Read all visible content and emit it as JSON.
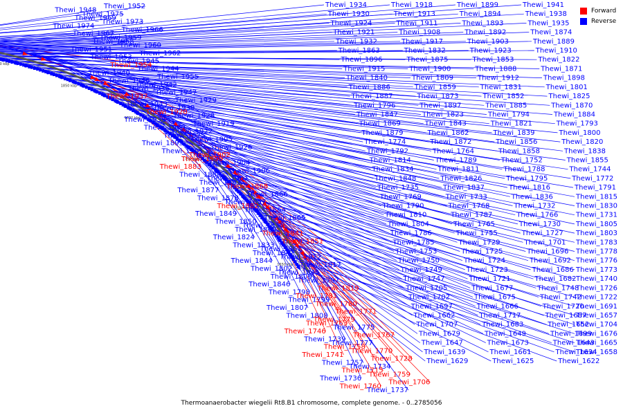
{
  "legend": [
    {
      "label": "Forward",
      "color": "#ff0000"
    },
    {
      "label": "Reverse",
      "color": "#0000ff"
    }
  ],
  "colors": {
    "forward": "#ff0000",
    "reverse": "#0000ff",
    "backbone": "#555555"
  },
  "caption": "Thermoanaerobacter wiegelii Rt8.B1 chromosome, complete genome. - 0..2785056",
  "ticks": [
    "1950 kbp",
    "1900 kbp",
    "1850 kbp",
    "1800 kbp",
    "1750 kbp",
    "1700 kbp",
    "1650 kbp"
  ],
  "left_labels": [
    {
      "text": "Thewi_1952",
      "strand": "reverse"
    },
    {
      "text": "Thewi_1948",
      "strand": "reverse"
    },
    {
      "text": "Thewi_1975",
      "strand": "reverse"
    },
    {
      "text": "Thewi_1969",
      "strand": "reverse"
    },
    {
      "text": "Thewi_1973",
      "strand": "reverse"
    },
    {
      "text": "Thewi_1974",
      "strand": "reverse"
    },
    {
      "text": "Thewi_1966",
      "strand": "reverse"
    },
    {
      "text": "Thewi_1967",
      "strand": "reverse"
    },
    {
      "text": "Thewi_1959",
      "strand": "reverse"
    },
    {
      "text": "Thewi_1968",
      "strand": "reverse"
    },
    {
      "text": "Thewi_1960",
      "strand": "reverse"
    },
    {
      "text": "Thewi_1951",
      "strand": "reverse"
    },
    {
      "text": "Thewi_1962",
      "strand": "reverse"
    },
    {
      "text": "Thewi_1953",
      "strand": "reverse"
    },
    {
      "text": "Thewi_1945",
      "strand": "reverse"
    },
    {
      "text": "Thewi_1954",
      "strand": "forward"
    },
    {
      "text": "Thewi_1944",
      "strand": "reverse"
    },
    {
      "text": "Thewi_1940",
      "strand": "reverse"
    },
    {
      "text": "Thewi_1955",
      "strand": "reverse"
    },
    {
      "text": "Thewi_1946",
      "strand": "reverse"
    },
    {
      "text": "Thewi_1942",
      "strand": "reverse"
    },
    {
      "text": "Thewi_1936",
      "strand": "reverse"
    },
    {
      "text": "Thewi_1947",
      "strand": "reverse"
    },
    {
      "text": "Thewi_1937",
      "strand": "forward"
    },
    {
      "text": "Thewi_1929",
      "strand": "reverse"
    },
    {
      "text": "Thewi_1943",
      "strand": "reverse"
    },
    {
      "text": "Thewi_1939",
      "strand": "reverse"
    },
    {
      "text": "Thewi_1920",
      "strand": "forward"
    },
    {
      "text": "Thewi_1928",
      "strand": "reverse"
    },
    {
      "text": "Thewi_1933",
      "strand": "reverse"
    },
    {
      "text": "Thewi_1919",
      "strand": "reverse"
    },
    {
      "text": "Thewi_1909",
      "strand": "reverse"
    },
    {
      "text": "Thewi_1922",
      "strand": "reverse"
    },
    {
      "text": "Thewi_1925",
      "strand": "reverse"
    },
    {
      "text": "Thewi_1905",
      "strand": "reverse"
    },
    {
      "text": "Thewi_1895",
      "strand": "reverse"
    },
    {
      "text": "Thewi_1926",
      "strand": "reverse"
    },
    {
      "text": "Thewi_1901",
      "strand": "reverse"
    },
    {
      "text": "Thewi_1902",
      "strand": "forward"
    },
    {
      "text": "Thewi_1890",
      "strand": "forward"
    },
    {
      "text": "Thewi_1904",
      "strand": "reverse"
    },
    {
      "text": "Thewi_1883",
      "strand": "forward"
    },
    {
      "text": "Thewi_1906",
      "strand": "reverse"
    },
    {
      "text": "Thewi_1880",
      "strand": "reverse"
    },
    {
      "text": "Thewi_1907",
      "strand": "reverse"
    },
    {
      "text": "Thewi_1881",
      "strand": "reverse"
    },
    {
      "text": "Thewi_1868",
      "strand": "forward"
    },
    {
      "text": "Thewi_1877",
      "strand": "reverse"
    },
    {
      "text": "Thewi_1866",
      "strand": "reverse"
    },
    {
      "text": "Thewi_1878",
      "strand": "reverse"
    },
    {
      "text": "Thewi_1857",
      "strand": "reverse"
    },
    {
      "text": "Thewi_1882",
      "strand": "forward"
    },
    {
      "text": "Thewi_1864",
      "strand": "reverse"
    },
    {
      "text": "Thewi_1849",
      "strand": "reverse"
    },
    {
      "text": "Thewi_1865",
      "strand": "reverse"
    },
    {
      "text": "Thewi_1850",
      "strand": "reverse"
    },
    {
      "text": "Thewi_1835",
      "strand": "reverse"
    },
    {
      "text": "Thewi_1860",
      "strand": "reverse"
    },
    {
      "text": "Thewi_1841",
      "strand": "forward"
    },
    {
      "text": "Thewi_1824",
      "strand": "reverse"
    },
    {
      "text": "Thewi_1851",
      "strand": "forward"
    },
    {
      "text": "Thewi_1833",
      "strand": "reverse"
    },
    {
      "text": "Thewi_1861",
      "strand": "reverse"
    },
    {
      "text": "Thewi_1842",
      "strand": "reverse"
    },
    {
      "text": "Thewi_1812",
      "strand": "reverse"
    },
    {
      "text": "Thewi_1844",
      "strand": "reverse"
    },
    {
      "text": "Thewi_1817",
      "strand": "reverse"
    },
    {
      "text": "Thewi_1802",
      "strand": "reverse"
    },
    {
      "text": "Thewi_1845",
      "strand": "reverse"
    },
    {
      "text": "Thewi_1806",
      "strand": "reverse"
    },
    {
      "text": "Thewi_1797",
      "strand": "reverse"
    },
    {
      "text": "Thewi_1846",
      "strand": "reverse"
    },
    {
      "text": "Thewi_1819",
      "strand": "forward"
    },
    {
      "text": "Thewi_1798",
      "strand": "reverse"
    },
    {
      "text": "Thewi_1781",
      "strand": "forward"
    },
    {
      "text": "Thewi_1799",
      "strand": "reverse"
    },
    {
      "text": "Thewi_1780",
      "strand": "forward"
    },
    {
      "text": "Thewi_1807",
      "strand": "reverse"
    },
    {
      "text": "Thewi_1771",
      "strand": "forward"
    },
    {
      "text": "Thewi_1808",
      "strand": "reverse"
    },
    {
      "text": "Thewi_1779",
      "strand": "forward"
    },
    {
      "text": "Thewi_1763",
      "strand": "forward"
    },
    {
      "text": "Thewi_1775",
      "strand": "reverse"
    },
    {
      "text": "Thewi_1746",
      "strand": "forward"
    },
    {
      "text": "Thewi_1767",
      "strand": "forward"
    },
    {
      "text": "Thewi_1739",
      "strand": "reverse"
    },
    {
      "text": "Thewi_1777",
      "strand": "reverse"
    },
    {
      "text": "Thewi_1758",
      "strand": "forward"
    },
    {
      "text": "Thewi_1770",
      "strand": "forward"
    },
    {
      "text": "Thewi_1741",
      "strand": "forward"
    },
    {
      "text": "Thewi_1728",
      "strand": "forward"
    },
    {
      "text": "Thewi_1757",
      "strand": "reverse"
    },
    {
      "text": "Thewi_1734",
      "strand": "reverse"
    },
    {
      "text": "Thewi_1715",
      "strand": "forward"
    },
    {
      "text": "Thewi_1759",
      "strand": "forward"
    },
    {
      "text": "Thewi_1736",
      "strand": "reverse"
    },
    {
      "text": "Thewi_1706",
      "strand": "forward"
    },
    {
      "text": "Thewi_1760",
      "strand": "forward"
    },
    {
      "text": "Thewi_1737",
      "strand": "reverse"
    }
  ],
  "right_labels": [
    {
      "text": "Thewi_1934",
      "strand": "reverse"
    },
    {
      "text": "Thewi_1918",
      "strand": "reverse"
    },
    {
      "text": "Thewi_1899",
      "strand": "reverse"
    },
    {
      "text": "Thewi_1941",
      "strand": "reverse"
    },
    {
      "text": "Thewi_1930",
      "strand": "reverse"
    },
    {
      "text": "Thewi_1913",
      "strand": "reverse"
    },
    {
      "text": "Thewi_1894",
      "strand": "reverse"
    },
    {
      "text": "Thewi_1938",
      "strand": "reverse"
    },
    {
      "text": "Thewi_1924",
      "strand": "reverse"
    },
    {
      "text": "Thewi_1911",
      "strand": "reverse"
    },
    {
      "text": "Thewi_1893",
      "strand": "reverse"
    },
    {
      "text": "Thewi_1935",
      "strand": "reverse"
    },
    {
      "text": "Thewi_1921",
      "strand": "reverse"
    },
    {
      "text": "Thewi_1908",
      "strand": "reverse"
    },
    {
      "text": "Thewi_1892",
      "strand": "reverse"
    },
    {
      "text": "Thewi_1874",
      "strand": "reverse"
    },
    {
      "text": "Thewi_1932",
      "strand": "reverse"
    },
    {
      "text": "Thewi_1917",
      "strand": "reverse"
    },
    {
      "text": "Thewi_1903",
      "strand": "reverse"
    },
    {
      "text": "Thewi_1889",
      "strand": "reverse"
    },
    {
      "text": "Thewi_1863",
      "strand": "reverse"
    },
    {
      "text": "Thewi_1832",
      "strand": "reverse"
    },
    {
      "text": "Thewi_1923",
      "strand": "reverse"
    },
    {
      "text": "Thewi_1910",
      "strand": "reverse"
    },
    {
      "text": "Thewi_1896",
      "strand": "reverse"
    },
    {
      "text": "Thewi_1875",
      "strand": "reverse"
    },
    {
      "text": "Thewi_1853",
      "strand": "reverse"
    },
    {
      "text": "Thewi_1822",
      "strand": "reverse"
    },
    {
      "text": "Thewi_1915",
      "strand": "reverse"
    },
    {
      "text": "Thewi_1900",
      "strand": "reverse"
    },
    {
      "text": "Thewi_1888",
      "strand": "reverse"
    },
    {
      "text": "Thewi_1871",
      "strand": "reverse"
    },
    {
      "text": "Thewi_1840",
      "strand": "reverse"
    },
    {
      "text": "Thewi_1809",
      "strand": "reverse"
    },
    {
      "text": "Thewi_1912",
      "strand": "reverse"
    },
    {
      "text": "Thewi_1898",
      "strand": "reverse"
    },
    {
      "text": "Thewi_1886",
      "strand": "reverse"
    },
    {
      "text": "Thewi_1859",
      "strand": "reverse"
    },
    {
      "text": "Thewi_1831",
      "strand": "reverse"
    },
    {
      "text": "Thewi_1801",
      "strand": "reverse"
    },
    {
      "text": "Thewi_1887",
      "strand": "reverse"
    },
    {
      "text": "Thewi_1873",
      "strand": "reverse"
    },
    {
      "text": "Thewi_1852",
      "strand": "reverse"
    },
    {
      "text": "Thewi_1825",
      "strand": "reverse"
    },
    {
      "text": "Thewi_1796",
      "strand": "reverse"
    },
    {
      "text": "Thewi_1897",
      "strand": "reverse"
    },
    {
      "text": "Thewi_1885",
      "strand": "reverse"
    },
    {
      "text": "Thewi_1870",
      "strand": "reverse"
    },
    {
      "text": "Thewi_1847",
      "strand": "reverse"
    },
    {
      "text": "Thewi_1823",
      "strand": "reverse"
    },
    {
      "text": "Thewi_1794",
      "strand": "reverse"
    },
    {
      "text": "Thewi_1884",
      "strand": "reverse"
    },
    {
      "text": "Thewi_1869",
      "strand": "reverse"
    },
    {
      "text": "Thewi_1843",
      "strand": "reverse"
    },
    {
      "text": "Thewi_1821",
      "strand": "reverse"
    },
    {
      "text": "Thewi_1793",
      "strand": "reverse"
    },
    {
      "text": "Thewi_1879",
      "strand": "reverse"
    },
    {
      "text": "Thewi_1862",
      "strand": "reverse"
    },
    {
      "text": "Thewi_1839",
      "strand": "reverse"
    },
    {
      "text": "Thewi_1800",
      "strand": "reverse"
    },
    {
      "text": "Thewi_1774",
      "strand": "reverse"
    },
    {
      "text": "Thewi_1872",
      "strand": "reverse"
    },
    {
      "text": "Thewi_1856",
      "strand": "reverse"
    },
    {
      "text": "Thewi_1820",
      "strand": "reverse"
    },
    {
      "text": "Thewi_1792",
      "strand": "reverse"
    },
    {
      "text": "Thewi_1764",
      "strand": "reverse"
    },
    {
      "text": "Thewi_1858",
      "strand": "reverse"
    },
    {
      "text": "Thewi_1838",
      "strand": "reverse"
    },
    {
      "text": "Thewi_1814",
      "strand": "reverse"
    },
    {
      "text": "Thewi_1789",
      "strand": "reverse"
    },
    {
      "text": "Thewi_1752",
      "strand": "reverse"
    },
    {
      "text": "Thewi_1855",
      "strand": "reverse"
    },
    {
      "text": "Thewi_1834",
      "strand": "reverse"
    },
    {
      "text": "Thewi_1811",
      "strand": "reverse"
    },
    {
      "text": "Thewi_1788",
      "strand": "reverse"
    },
    {
      "text": "Thewi_1744",
      "strand": "reverse"
    },
    {
      "text": "Thewi_1848",
      "strand": "reverse"
    },
    {
      "text": "Thewi_1826",
      "strand": "reverse"
    },
    {
      "text": "Thewi_1795",
      "strand": "reverse"
    },
    {
      "text": "Thewi_1772",
      "strand": "reverse"
    },
    {
      "text": "Thewi_1735",
      "strand": "reverse"
    },
    {
      "text": "Thewi_1837",
      "strand": "reverse"
    },
    {
      "text": "Thewi_1816",
      "strand": "reverse"
    },
    {
      "text": "Thewi_1791",
      "strand": "reverse"
    },
    {
      "text": "Thewi_1769",
      "strand": "reverse"
    },
    {
      "text": "Thewi_1733",
      "strand": "reverse"
    },
    {
      "text": "Thewi_1836",
      "strand": "reverse"
    },
    {
      "text": "Thewi_1815",
      "strand": "reverse"
    },
    {
      "text": "Thewi_1790",
      "strand": "reverse"
    },
    {
      "text": "Thewi_1768",
      "strand": "reverse"
    },
    {
      "text": "Thewi_1732",
      "strand": "reverse"
    },
    {
      "text": "Thewi_1830",
      "strand": "reverse"
    },
    {
      "text": "Thewi_1810",
      "strand": "reverse"
    },
    {
      "text": "Thewi_1787",
      "strand": "reverse"
    },
    {
      "text": "Thewi_1766",
      "strand": "reverse"
    },
    {
      "text": "Thewi_1731",
      "strand": "reverse"
    },
    {
      "text": "Thewi_1804",
      "strand": "reverse"
    },
    {
      "text": "Thewi_1765",
      "strand": "reverse"
    },
    {
      "text": "Thewi_1730",
      "strand": "reverse"
    },
    {
      "text": "Thewi_1805",
      "strand": "reverse"
    },
    {
      "text": "Thewi_1786",
      "strand": "reverse"
    },
    {
      "text": "Thewi_1755",
      "strand": "reverse"
    },
    {
      "text": "Thewi_1727",
      "strand": "reverse"
    },
    {
      "text": "Thewi_1803",
      "strand": "reverse"
    },
    {
      "text": "Thewi_1785",
      "strand": "reverse"
    },
    {
      "text": "Thewi_1729",
      "strand": "reverse"
    },
    {
      "text": "Thewi_1701",
      "strand": "reverse"
    },
    {
      "text": "Thewi_1783",
      "strand": "reverse"
    },
    {
      "text": "Thewi_1753",
      "strand": "reverse"
    },
    {
      "text": "Thewi_1725",
      "strand": "reverse"
    },
    {
      "text": "Thewi_1696",
      "strand": "reverse"
    },
    {
      "text": "Thewi_1778",
      "strand": "reverse"
    },
    {
      "text": "Thewi_1750",
      "strand": "reverse"
    },
    {
      "text": "Thewi_1724",
      "strand": "reverse"
    },
    {
      "text": "Thewi_1692",
      "strand": "reverse"
    },
    {
      "text": "Thewi_1776",
      "strand": "reverse"
    },
    {
      "text": "Thewi_1749",
      "strand": "reverse"
    },
    {
      "text": "Thewi_1723",
      "strand": "reverse"
    },
    {
      "text": "Thewi_1686",
      "strand": "reverse"
    },
    {
      "text": "Thewi_1773",
      "strand": "reverse"
    },
    {
      "text": "Thewi_1747",
      "strand": "reverse"
    },
    {
      "text": "Thewi_1721",
      "strand": "reverse"
    },
    {
      "text": "Thewi_1682",
      "strand": "reverse"
    },
    {
      "text": "Thewi_1740",
      "strand": "reverse"
    },
    {
      "text": "Thewi_1705",
      "strand": "reverse"
    },
    {
      "text": "Thewi_1677",
      "strand": "reverse"
    },
    {
      "text": "Thewi_1748",
      "strand": "reverse"
    },
    {
      "text": "Thewi_1726",
      "strand": "reverse"
    },
    {
      "text": "Thewi_1702",
      "strand": "reverse"
    },
    {
      "text": "Thewi_1675",
      "strand": "reverse"
    },
    {
      "text": "Thewi_1742",
      "strand": "reverse"
    },
    {
      "text": "Thewi_1722",
      "strand": "reverse"
    },
    {
      "text": "Thewi_1697",
      "strand": "reverse"
    },
    {
      "text": "Thewi_1666",
      "strand": "reverse"
    },
    {
      "text": "Thewi_1720",
      "strand": "reverse"
    },
    {
      "text": "Thewi_1691",
      "strand": "reverse"
    },
    {
      "text": "Thewi_1662",
      "strand": "reverse"
    },
    {
      "text": "Thewi_1717",
      "strand": "reverse"
    },
    {
      "text": "Thewi_1687",
      "strand": "reverse"
    },
    {
      "text": "Thewi_1657",
      "strand": "reverse"
    },
    {
      "text": "Thewi_1707",
      "strand": "reverse"
    },
    {
      "text": "Thewi_1683",
      "strand": "reverse"
    },
    {
      "text": "Thewi_1652",
      "strand": "reverse"
    },
    {
      "text": "Thewi_1704",
      "strand": "reverse"
    },
    {
      "text": "Thewi_1679",
      "strand": "reverse"
    },
    {
      "text": "Thewi_1649",
      "strand": "reverse"
    },
    {
      "text": "Thewi_1699",
      "strand": "reverse"
    },
    {
      "text": "Thewi_1676",
      "strand": "reverse"
    },
    {
      "text": "Thewi_1647",
      "strand": "reverse"
    },
    {
      "text": "Thewi_1673",
      "strand": "reverse"
    },
    {
      "text": "Thewi_1643",
      "strand": "reverse"
    },
    {
      "text": "Thewi_1665",
      "strand": "reverse"
    },
    {
      "text": "Thewi_1639",
      "strand": "reverse"
    },
    {
      "text": "Thewi_1661",
      "strand": "reverse"
    },
    {
      "text": "Thewi_1634",
      "strand": "reverse"
    },
    {
      "text": "Thewi_1658",
      "strand": "reverse"
    },
    {
      "text": "Thewi_1629",
      "strand": "reverse"
    },
    {
      "text": "Thewi_1625",
      "strand": "reverse"
    },
    {
      "text": "Thewi_1622",
      "strand": "reverse"
    }
  ]
}
